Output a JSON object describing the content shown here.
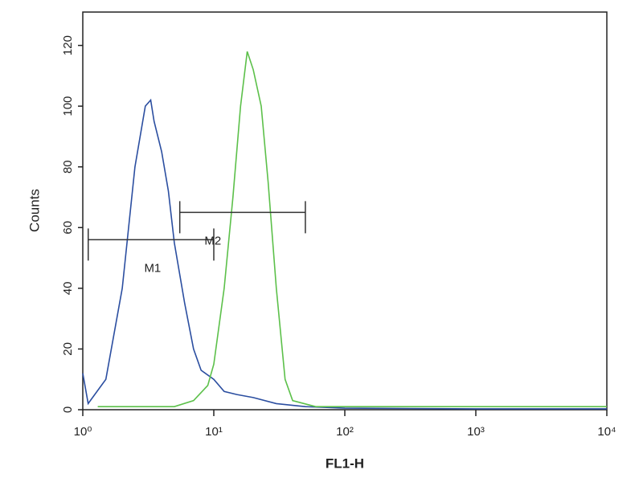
{
  "chart_data": {
    "type": "line",
    "xlabel": "FL1-H",
    "ylabel": "Counts",
    "xscale": "log",
    "xlim": [
      1,
      10000
    ],
    "ylim": [
      0,
      131
    ],
    "xticks": [
      {
        "value": 1,
        "label": "10⁰"
      },
      {
        "value": 10,
        "label": "10¹"
      },
      {
        "value": 100,
        "label": "10²"
      },
      {
        "value": 1000,
        "label": "10³"
      },
      {
        "value": 10000,
        "label": "10⁴"
      }
    ],
    "yticks": [
      0,
      20,
      40,
      60,
      80,
      100,
      120
    ],
    "series": [
      {
        "color": "#2b4ea0",
        "x": [
          1,
          1.1,
          1.5,
          2,
          2.5,
          3,
          3.3,
          3.5,
          4,
          4.5,
          5,
          6,
          7,
          8,
          10,
          12,
          15,
          20,
          30,
          50,
          100,
          1000,
          10000
        ],
        "values": [
          12,
          2,
          10,
          40,
          80,
          100,
          102,
          95,
          85,
          72,
          55,
          35,
          20,
          13,
          10,
          6,
          5,
          4,
          2,
          1,
          0.5,
          0.3,
          0.3
        ]
      },
      {
        "color": "#5cc04a",
        "x": [
          1.3,
          5,
          7,
          9,
          10,
          12,
          14,
          16,
          18,
          20,
          23,
          26,
          30,
          35,
          40,
          60,
          100,
          1000,
          10000
        ],
        "values": [
          1,
          1,
          3,
          8,
          15,
          40,
          70,
          100,
          118,
          112,
          100,
          75,
          40,
          10,
          3,
          1,
          1,
          1,
          1
        ]
      }
    ],
    "markers": [
      {
        "label": "M1",
        "x": [
          1.1,
          10
        ],
        "y": 56
      },
      {
        "label": "M2",
        "x": [
          5.5,
          50
        ],
        "y": 65
      }
    ]
  }
}
